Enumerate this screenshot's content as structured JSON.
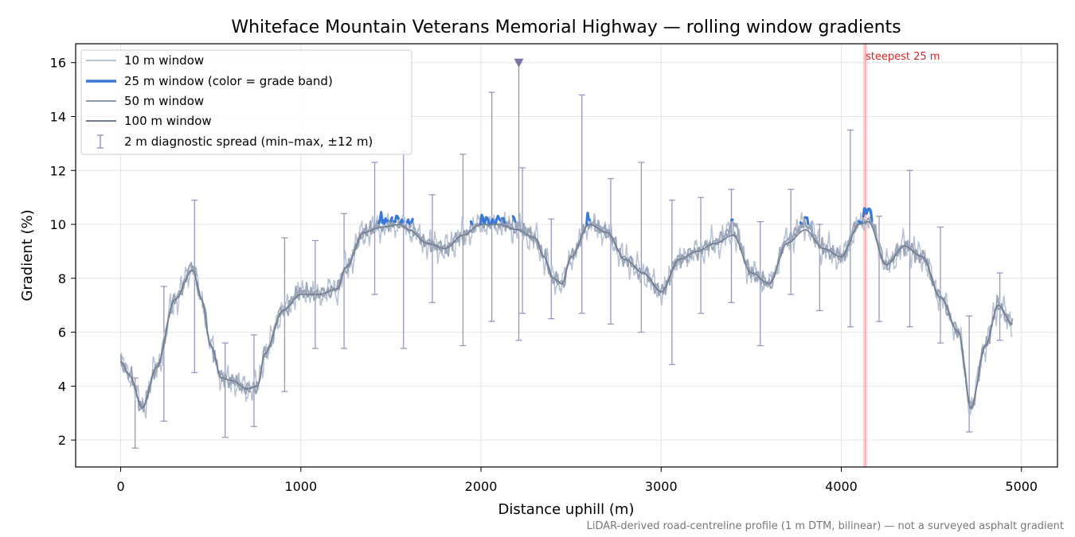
{
  "chart_data": {
    "type": "line",
    "title": "Whiteface Mountain Veterans Memorial Highway — rolling window gradients",
    "xlabel": "Distance uphill (m)",
    "ylabel": "Gradient (%)",
    "xlim": [
      -250,
      5200
    ],
    "ylim": [
      1.0,
      16.7
    ],
    "x_ticks": [
      0,
      1000,
      2000,
      3000,
      4000,
      5000
    ],
    "y_ticks": [
      2,
      4,
      6,
      8,
      10,
      12,
      14,
      16
    ],
    "grid": true,
    "legend_position": "top-left",
    "footnote": "LiDAR-derived road-centreline profile (1 m DTM, bilinear) — not a surveyed asphalt gradient",
    "colors": {
      "w10": "#b8c2d4",
      "w25": "#9aa6b8",
      "w25_highlight": "#3a78d8",
      "w50": "#8e9aae",
      "w100": "#6f7a8c",
      "errorbar": "#9a96bc",
      "marker": "#7b73ab",
      "steep_band": "#f6c6c6",
      "steep_line": "#e8a0a0",
      "annotation": "#d62728",
      "grid": "#e4e4e4"
    },
    "series": [
      {
        "name": "10 m window",
        "color": "#b8c2d4",
        "jitter": 0.55,
        "x": [
          0,
          50,
          120,
          200,
          300,
          400,
          450,
          500,
          560,
          620,
          700,
          760,
          800,
          900,
          1000,
          1100,
          1200,
          1250,
          1350,
          1450,
          1550,
          1600,
          1700,
          1800,
          1900,
          2000,
          2100,
          2200,
          2300,
          2350,
          2400,
          2450,
          2500,
          2600,
          2700,
          2800,
          2900,
          3000,
          3100,
          3200,
          3300,
          3400,
          3500,
          3600,
          3700,
          3800,
          3900,
          4000,
          4100,
          4150,
          4250,
          4350,
          4450,
          4550,
          4650,
          4720,
          4800,
          4870,
          4950
        ],
        "y": [
          4.9,
          4.4,
          3.2,
          4.7,
          7.2,
          8.4,
          7.2,
          5.5,
          4.3,
          4.2,
          3.9,
          4.0,
          5.2,
          6.8,
          7.5,
          7.4,
          7.6,
          8.4,
          9.7,
          9.9,
          10.0,
          9.8,
          9.3,
          9.1,
          9.6,
          10.0,
          10.0,
          9.8,
          9.5,
          8.8,
          8.0,
          7.8,
          8.8,
          10.0,
          9.7,
          8.7,
          8.2,
          7.5,
          8.7,
          9.0,
          9.3,
          9.7,
          8.2,
          7.8,
          9.4,
          10.0,
          9.1,
          8.8,
          10.0,
          10.2,
          8.5,
          9.2,
          8.8,
          7.3,
          6.0,
          3.2,
          5.5,
          7.0,
          6.3
        ]
      },
      {
        "name": "25 m window (color = grade band)",
        "color": "#9aa6b8",
        "highlight_color": "#3a78d8",
        "highlight_above": 10.0,
        "jitter": 0.3,
        "x": [
          0,
          50,
          120,
          200,
          300,
          400,
          450,
          500,
          560,
          620,
          700,
          760,
          800,
          900,
          1000,
          1100,
          1200,
          1250,
          1350,
          1450,
          1550,
          1600,
          1700,
          1800,
          1900,
          2000,
          2100,
          2200,
          2300,
          2350,
          2400,
          2450,
          2500,
          2600,
          2700,
          2800,
          2900,
          3000,
          3100,
          3200,
          3300,
          3400,
          3500,
          3600,
          3700,
          3800,
          3900,
          4000,
          4100,
          4150,
          4250,
          4350,
          4450,
          4550,
          4650,
          4720,
          4800,
          4870,
          4950
        ],
        "y": [
          4.9,
          4.4,
          3.2,
          4.7,
          7.2,
          8.4,
          7.2,
          5.5,
          4.3,
          4.2,
          3.9,
          4.0,
          5.2,
          6.8,
          7.5,
          7.4,
          7.6,
          8.4,
          9.7,
          10.1,
          10.1,
          10.0,
          9.3,
          9.1,
          9.6,
          10.1,
          10.1,
          10.0,
          9.5,
          8.8,
          8.0,
          7.8,
          8.8,
          10.1,
          9.7,
          8.7,
          8.2,
          7.5,
          8.7,
          9.0,
          9.3,
          10.0,
          8.2,
          7.8,
          9.4,
          10.1,
          9.1,
          8.8,
          10.1,
          10.5,
          8.5,
          9.2,
          8.8,
          7.3,
          6.0,
          3.2,
          5.5,
          7.0,
          6.3
        ]
      },
      {
        "name": "50 m window",
        "color": "#8e9aae",
        "jitter": 0.15,
        "x": [
          0,
          50,
          120,
          200,
          300,
          400,
          450,
          500,
          560,
          620,
          700,
          760,
          800,
          900,
          1000,
          1100,
          1200,
          1250,
          1350,
          1450,
          1550,
          1600,
          1700,
          1800,
          1900,
          2000,
          2100,
          2200,
          2300,
          2350,
          2400,
          2450,
          2500,
          2600,
          2700,
          2800,
          2900,
          3000,
          3100,
          3200,
          3300,
          3400,
          3500,
          3600,
          3700,
          3800,
          3900,
          4000,
          4100,
          4150,
          4250,
          4350,
          4450,
          4550,
          4650,
          4720,
          4800,
          4870,
          4950
        ],
        "y": [
          4.9,
          4.4,
          3.2,
          4.7,
          7.2,
          8.4,
          7.2,
          5.5,
          4.3,
          4.2,
          3.9,
          4.0,
          5.2,
          6.8,
          7.5,
          7.4,
          7.6,
          8.4,
          9.7,
          9.9,
          10.0,
          9.8,
          9.3,
          9.1,
          9.6,
          10.0,
          10.0,
          9.8,
          9.5,
          8.8,
          8.0,
          7.8,
          8.8,
          10.0,
          9.7,
          8.7,
          8.2,
          7.5,
          8.7,
          9.0,
          9.3,
          9.7,
          8.2,
          7.8,
          9.4,
          10.0,
          9.1,
          8.8,
          10.0,
          10.2,
          8.5,
          9.2,
          8.8,
          7.3,
          6.0,
          3.2,
          5.5,
          7.0,
          6.3
        ]
      },
      {
        "name": "100 m window",
        "color": "#6f7a8c",
        "jitter": 0,
        "x": [
          0,
          50,
          120,
          200,
          300,
          400,
          450,
          500,
          560,
          620,
          700,
          760,
          800,
          900,
          1000,
          1100,
          1200,
          1250,
          1350,
          1450,
          1550,
          1600,
          1700,
          1800,
          1900,
          2000,
          2100,
          2200,
          2300,
          2350,
          2400,
          2450,
          2500,
          2600,
          2700,
          2800,
          2900,
          3000,
          3100,
          3200,
          3300,
          3400,
          3500,
          3600,
          3700,
          3800,
          3900,
          4000,
          4100,
          4150,
          4250,
          4350,
          4450,
          4550,
          4650,
          4720,
          4800,
          4870,
          4950
        ],
        "y": [
          4.9,
          4.4,
          3.2,
          4.7,
          7.2,
          8.3,
          7.2,
          5.5,
          4.3,
          4.2,
          3.9,
          4.0,
          5.2,
          6.8,
          7.4,
          7.4,
          7.6,
          8.4,
          9.7,
          9.9,
          10.0,
          9.8,
          9.3,
          9.1,
          9.6,
          10.0,
          10.0,
          9.8,
          9.5,
          8.8,
          8.0,
          7.8,
          8.8,
          10.0,
          9.7,
          8.7,
          8.2,
          7.5,
          8.7,
          9.0,
          9.3,
          9.6,
          8.2,
          7.8,
          9.3,
          9.8,
          9.1,
          8.8,
          10.0,
          10.1,
          8.5,
          9.2,
          8.8,
          7.3,
          6.0,
          3.2,
          5.5,
          7.0,
          6.3
        ]
      }
    ],
    "errorbars": {
      "name": "2 m diagnostic spread (min–max, ±12 m)",
      "items": [
        {
          "x": 80,
          "min": 1.7,
          "max": 4.3
        },
        {
          "x": 240,
          "min": 2.7,
          "max": 7.7
        },
        {
          "x": 410,
          "min": 4.5,
          "max": 10.9
        },
        {
          "x": 580,
          "min": 2.1,
          "max": 5.6
        },
        {
          "x": 740,
          "min": 2.5,
          "max": 5.9
        },
        {
          "x": 910,
          "min": 3.8,
          "max": 9.5
        },
        {
          "x": 1080,
          "min": 5.4,
          "max": 9.4
        },
        {
          "x": 1240,
          "min": 5.4,
          "max": 10.4
        },
        {
          "x": 1410,
          "min": 7.4,
          "max": 12.3
        },
        {
          "x": 1570,
          "min": 5.4,
          "max": 12.7
        },
        {
          "x": 1730,
          "min": 7.1,
          "max": 11.1
        },
        {
          "x": 1900,
          "min": 5.5,
          "max": 12.6
        },
        {
          "x": 2060,
          "min": 6.4,
          "max": 14.9
        },
        {
          "x": 2210,
          "min": 5.7,
          "max": 16.0
        },
        {
          "x": 2230,
          "min": 6.7,
          "max": 12.1
        },
        {
          "x": 2390,
          "min": 6.5,
          "max": 10.2
        },
        {
          "x": 2560,
          "min": 6.7,
          "max": 14.8
        },
        {
          "x": 2720,
          "min": 6.3,
          "max": 11.7
        },
        {
          "x": 2890,
          "min": 6.0,
          "max": 12.3
        },
        {
          "x": 3060,
          "min": 4.8,
          "max": 10.9
        },
        {
          "x": 3220,
          "min": 6.7,
          "max": 11.0
        },
        {
          "x": 3390,
          "min": 7.1,
          "max": 11.3
        },
        {
          "x": 3550,
          "min": 5.5,
          "max": 10.1
        },
        {
          "x": 3720,
          "min": 7.4,
          "max": 11.3
        },
        {
          "x": 3880,
          "min": 6.8,
          "max": 10.0
        },
        {
          "x": 4050,
          "min": 6.2,
          "max": 13.5
        },
        {
          "x": 4210,
          "min": 6.4,
          "max": 10.3
        },
        {
          "x": 4380,
          "min": 6.2,
          "max": 12.0
        },
        {
          "x": 4550,
          "min": 5.6,
          "max": 9.9
        },
        {
          "x": 4710,
          "min": 2.3,
          "max": 6.6
        },
        {
          "x": 4880,
          "min": 5.7,
          "max": 8.2
        }
      ]
    },
    "marker": {
      "x": 2210,
      "y": 16.0,
      "shape": "triangle-down"
    },
    "steepest_25m": {
      "label": "steepest 25 m",
      "x_start": 4120,
      "x_end": 4145,
      "x_line": 4133
    }
  }
}
